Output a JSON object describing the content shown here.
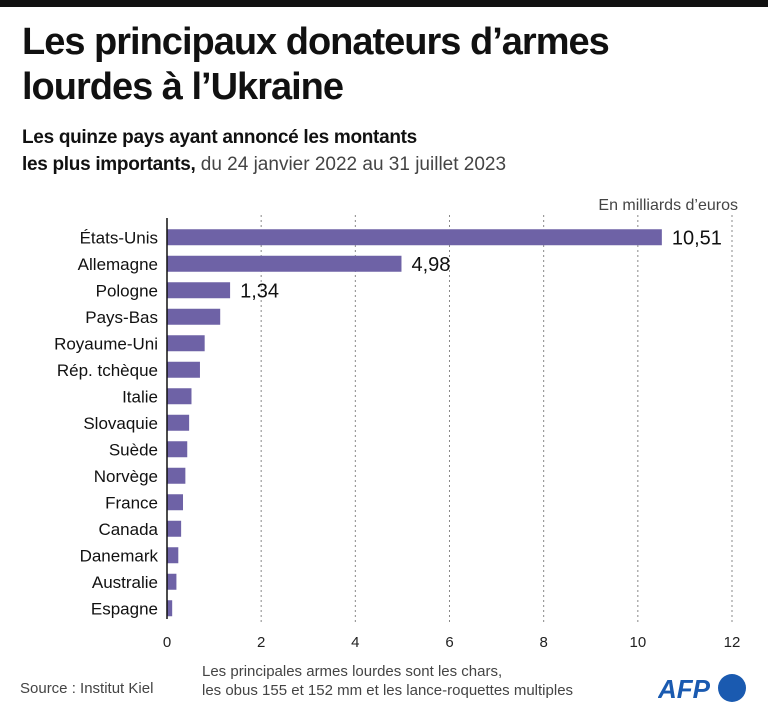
{
  "header": {
    "title_line1": "Les principaux donateurs d’armes",
    "title_line2": "lourdes à l’Ukraine",
    "subtitle_bold_line1": "Les quinze pays ayant annoncé les montants",
    "subtitle_bold_line2": "les plus importants,",
    "subtitle_light": " du 24 janvier 2022 au 31 juillet 2023"
  },
  "chart_data": {
    "type": "bar",
    "orientation": "horizontal",
    "title": "Les principaux donateurs d’armes lourdes à l’Ukraine",
    "unit_label": "En milliards d’euros",
    "xlabel": "",
    "ylabel": "",
    "categories": [
      "États-Unis",
      "Allemagne",
      "Pologne",
      "Pays-Bas",
      "Royaume-Uni",
      "Rép. tchèque",
      "Italie",
      "Slovaquie",
      "Suède",
      "Norvège",
      "France",
      "Canada",
      "Danemark",
      "Australie",
      "Espagne"
    ],
    "values": [
      10.51,
      4.98,
      1.34,
      1.13,
      0.8,
      0.7,
      0.52,
      0.47,
      0.43,
      0.39,
      0.34,
      0.3,
      0.24,
      0.2,
      0.11
    ],
    "data_labels": [
      "10,51",
      "4,98",
      "1,34"
    ],
    "xlim": [
      0,
      12
    ],
    "xticks": [
      0,
      2,
      4,
      6,
      8,
      10,
      12
    ],
    "xtick_labels": [
      "0",
      "2",
      "4",
      "6",
      "8",
      "10",
      "12"
    ],
    "grid": "vertical dotted",
    "bar_color": "#6e62a6"
  },
  "footer": {
    "source": "Source : Institut Kiel",
    "note_line1": "Les principales armes lourdes sont les chars,",
    "note_line2": "les obus 155 et 152 mm et les lance-roquettes multiples",
    "logo_text": "AFP",
    "logo_color": "#1a5ab0"
  }
}
